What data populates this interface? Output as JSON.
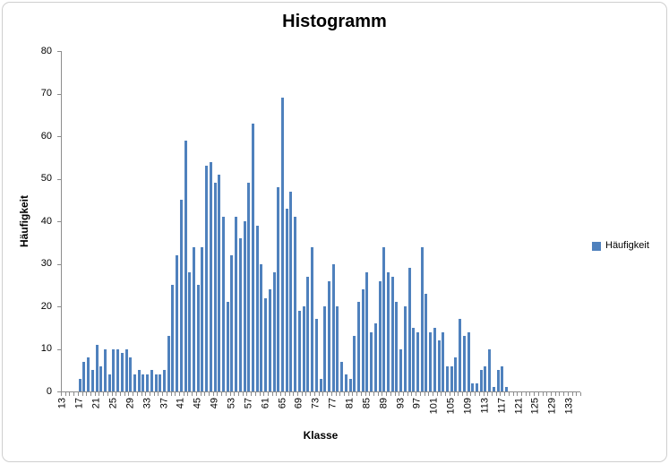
{
  "window": {
    "background": "#ffffff",
    "frame_border_color": "#cfcfcf"
  },
  "chart": {
    "title": "Histogramm",
    "x_axis_title": "Klasse",
    "y_axis_title": "Häufigkeit",
    "legend_label": "Häufigkeit",
    "bar_color": "#4f81bd",
    "axis_color": "#8c8c8c",
    "text_color": "#000000"
  },
  "chart_data": {
    "type": "bar",
    "title": "Histogramm",
    "xlabel": "Klasse",
    "ylabel": "Häufigkeit",
    "legend": [
      "Häufigkeit"
    ],
    "legend_position": "right",
    "grid": false,
    "ylim": [
      0,
      80
    ],
    "yticks": [
      0,
      10,
      20,
      30,
      40,
      50,
      60,
      70,
      80
    ],
    "xtick_label_interval": 4,
    "xtick_labels": [
      "13",
      "17",
      "21",
      "25",
      "29",
      "33",
      "37",
      "41",
      "45",
      "49",
      "53",
      "57",
      "61",
      "65",
      "69",
      "73",
      "77",
      "81",
      "85",
      "89",
      "93",
      "97",
      "101",
      "105",
      "109",
      "113",
      "117",
      "121",
      "125",
      "129",
      "133"
    ],
    "categories": [
      13,
      14,
      15,
      16,
      17,
      18,
      19,
      20,
      21,
      22,
      23,
      24,
      25,
      26,
      27,
      28,
      29,
      30,
      31,
      32,
      33,
      34,
      35,
      36,
      37,
      38,
      39,
      40,
      41,
      42,
      43,
      44,
      45,
      46,
      47,
      48,
      49,
      50,
      51,
      52,
      53,
      54,
      55,
      56,
      57,
      58,
      59,
      60,
      61,
      62,
      63,
      64,
      65,
      66,
      67,
      68,
      69,
      70,
      71,
      72,
      73,
      74,
      75,
      76,
      77,
      78,
      79,
      80,
      81,
      82,
      83,
      84,
      85,
      86,
      87,
      88,
      89,
      90,
      91,
      92,
      93,
      94,
      95,
      96,
      97,
      98,
      99,
      100,
      101,
      102,
      103,
      104,
      105,
      106,
      107,
      108,
      109,
      110,
      111,
      112,
      113,
      114,
      115,
      116,
      117,
      118,
      119,
      120,
      121,
      122,
      123,
      124,
      125,
      126,
      127,
      128,
      129,
      130,
      131,
      132,
      133,
      134,
      135
    ],
    "values": [
      0,
      0,
      0,
      0,
      3,
      7,
      8,
      5,
      11,
      6,
      10,
      4,
      10,
      10,
      9,
      10,
      8,
      4,
      5,
      4,
      4,
      5,
      4,
      4,
      5,
      13,
      25,
      32,
      45,
      59,
      28,
      34,
      25,
      34,
      53,
      54,
      49,
      51,
      41,
      21,
      32,
      41,
      36,
      40,
      49,
      63,
      39,
      30,
      22,
      24,
      28,
      48,
      69,
      43,
      47,
      41,
      19,
      20,
      27,
      34,
      17,
      3,
      20,
      26,
      30,
      20,
      7,
      4,
      3,
      13,
      21,
      24,
      28,
      14,
      16,
      26,
      34,
      28,
      27,
      21,
      10,
      20,
      29,
      15,
      14,
      34,
      23,
      14,
      15,
      12,
      14,
      6,
      6,
      8,
      17,
      13,
      14,
      2,
      2,
      5,
      6,
      10,
      1,
      5,
      6,
      1,
      0,
      0,
      0,
      0,
      0,
      0,
      0,
      0,
      0,
      0,
      0,
      0,
      0,
      0,
      0,
      0,
      0
    ]
  }
}
